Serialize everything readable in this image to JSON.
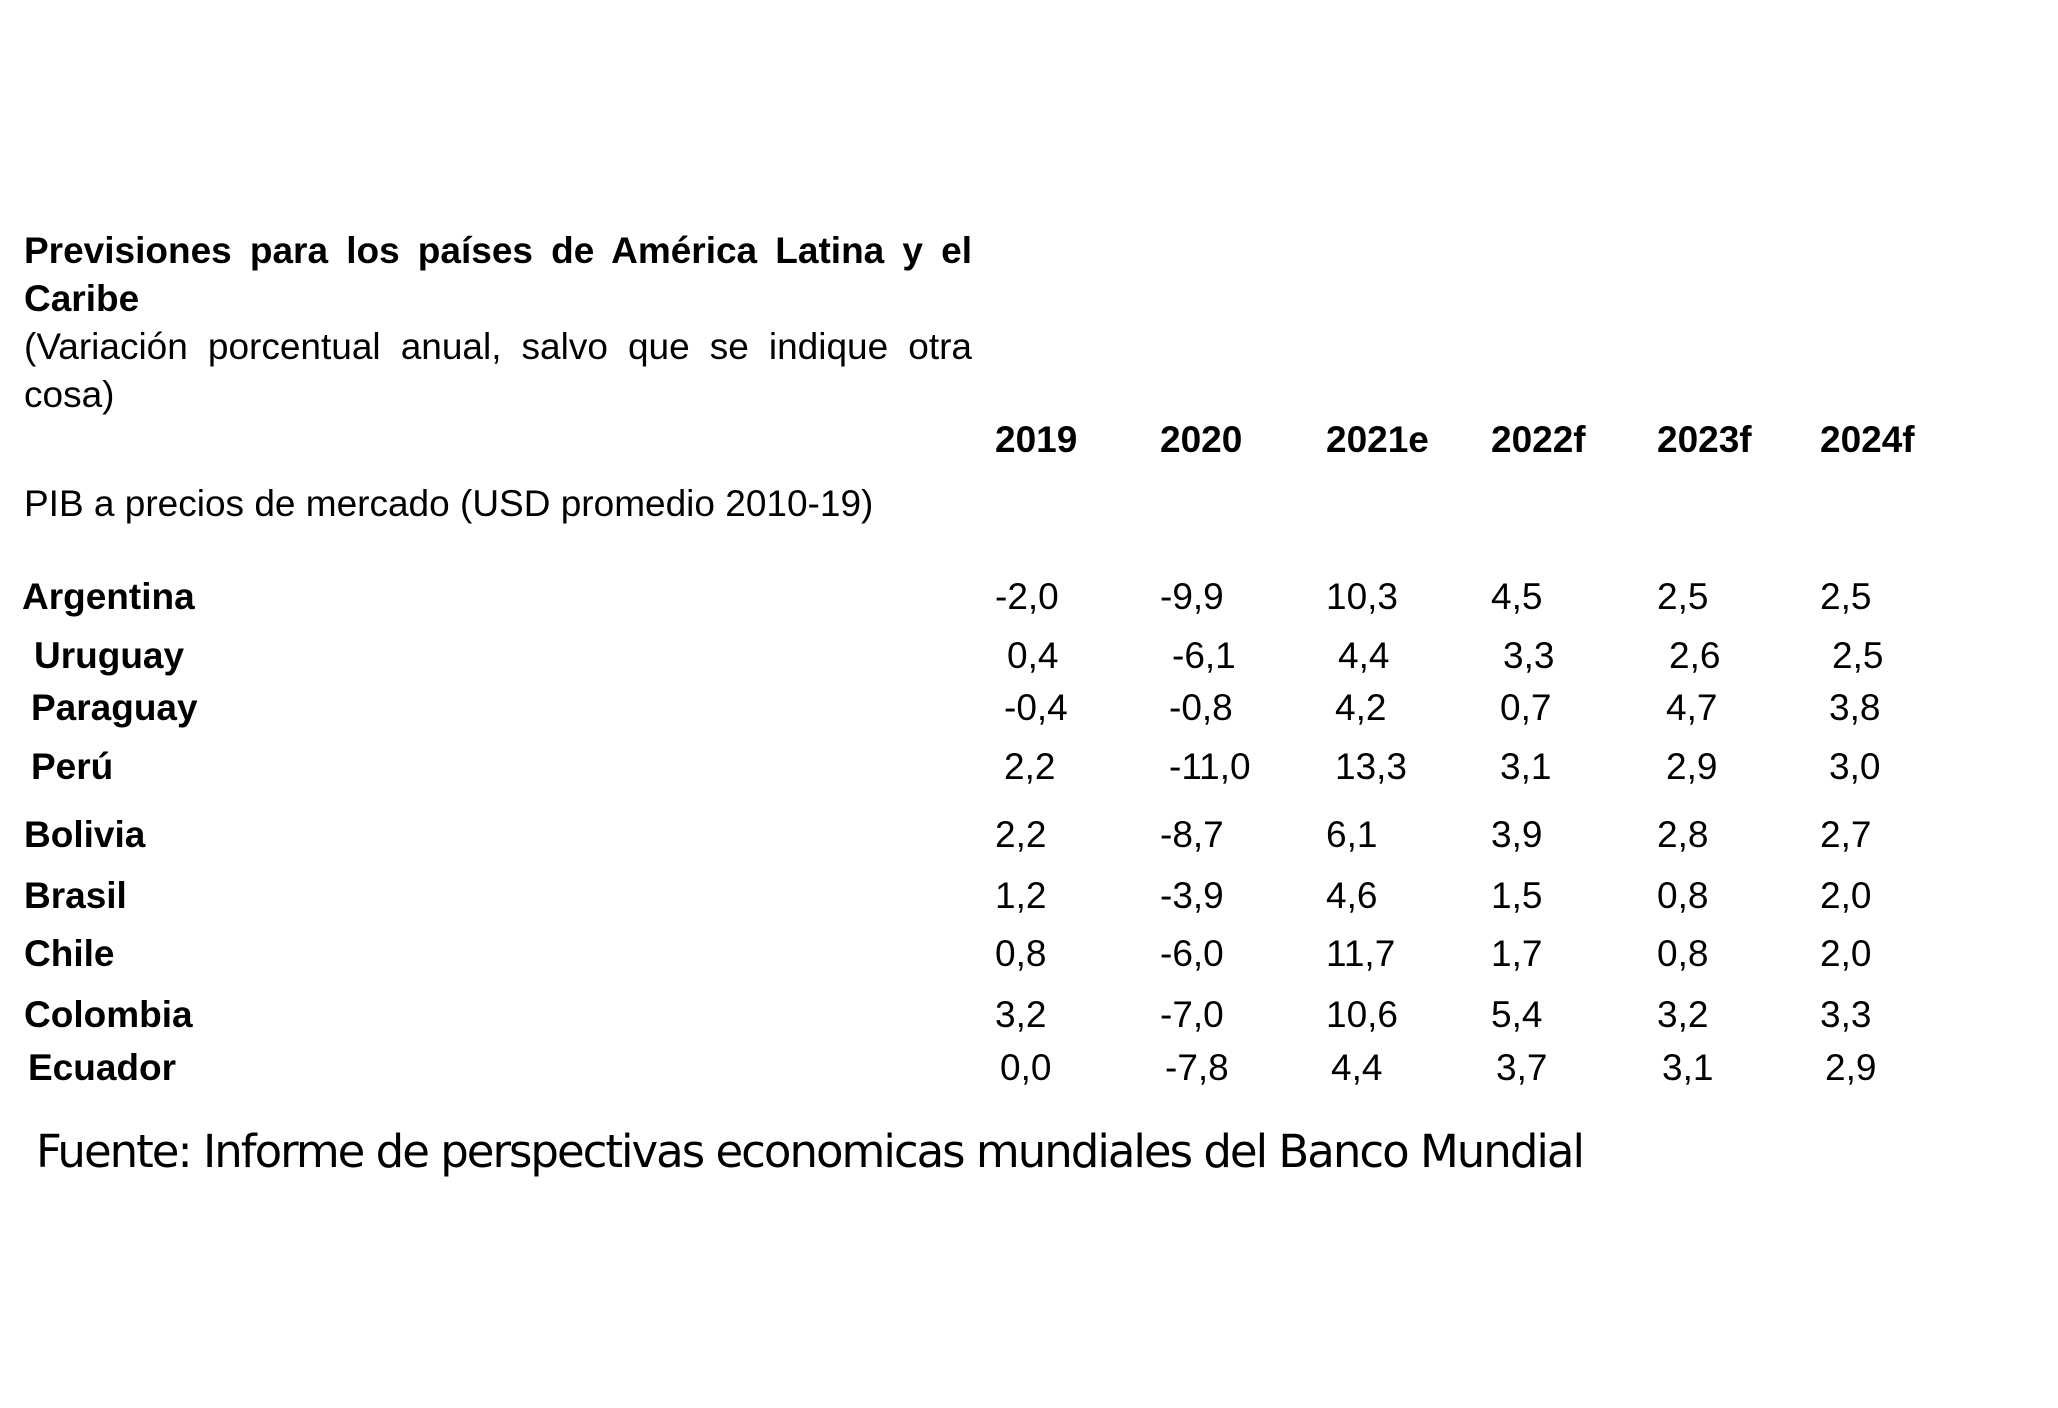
{
  "header": {
    "title": "Previsiones para los países de América Latina y el Caribe",
    "subtitle": "(Variación porcentual anual, salvo que se indique otra cosa)"
  },
  "table": {
    "columns": [
      "2019",
      "2020",
      "2021e",
      "2022f",
      "2023f",
      "2024f"
    ],
    "section": "PIB a precios de mercado (USD promedio 2010-19)",
    "rows": [
      {
        "label": "Argentina",
        "values": [
          "-2,0",
          "-9,9",
          "10,3",
          "4,5",
          "2,5",
          "2,5"
        ]
      },
      {
        "label": "Uruguay",
        "values": [
          "0,4",
          "-6,1",
          "4,4",
          "3,3",
          "2,6",
          "2,5"
        ]
      },
      {
        "label": "Paraguay",
        "values": [
          "-0,4",
          "-0,8",
          "4,2",
          "0,7",
          "4,7",
          "3,8"
        ]
      },
      {
        "label": "Perú",
        "values": [
          "2,2",
          "-11,0",
          "13,3",
          "3,1",
          "2,9",
          "3,0"
        ]
      },
      {
        "label": "Bolivia",
        "values": [
          "2,2",
          "-8,7",
          "6,1",
          "3,9",
          "2,8",
          "2,7"
        ]
      },
      {
        "label": "Brasil",
        "values": [
          "1,2",
          "-3,9",
          "4,6",
          "1,5",
          "0,8",
          "2,0"
        ]
      },
      {
        "label": "Chile",
        "values": [
          "0,8",
          "-6,0",
          "11,7",
          "1,7",
          "0,8",
          "2,0"
        ]
      },
      {
        "label": "Colombia",
        "values": [
          "3,2",
          "-7,0",
          "10,6",
          "5,4",
          "3,2",
          "3,3"
        ]
      },
      {
        "label": "Ecuador",
        "values": [
          "0,0",
          "-7,8",
          "4,4",
          "3,7",
          "3,1",
          "2,9"
        ]
      }
    ]
  },
  "footer": {
    "source": "Fuente: Informe de perspectivas economicas mundiales del Banco Mundial"
  }
}
